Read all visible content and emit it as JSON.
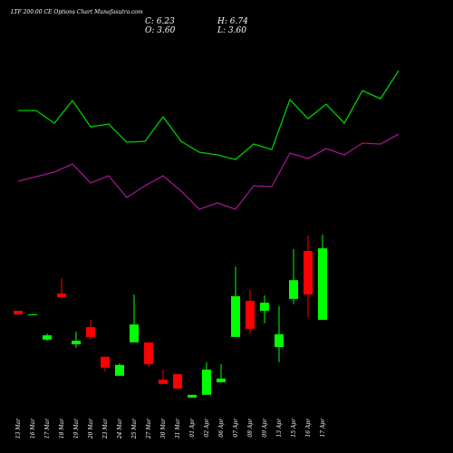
{
  "chart_data": {
    "type": "candlestick",
    "title": "LTF 200.00 CE Options Chart Munafasutra.com",
    "summary": {
      "close_label": "C:",
      "close": "6.23",
      "high_label": "H:",
      "high": "6.74",
      "open_label": "O:",
      "open": "3.60",
      "low_label": "L:",
      "low": "3.60"
    },
    "categories": [
      "13 Mar",
      "16 Mar",
      "17 Mar",
      "18 Mar",
      "19 Mar",
      "20 Mar",
      "23 Mar",
      "24 Mar",
      "25 Mar",
      "27 Mar",
      "30 Mar",
      "31 Mar",
      "01 Apr",
      "02 Apr",
      "06 Apr",
      "07 Apr",
      "08 Apr",
      "09 Apr",
      "13 Apr",
      "15 Apr",
      "16 Apr",
      "17 Apr"
    ],
    "open": [
      3.93,
      3.8,
      2.87,
      4.57,
      2.7,
      3.33,
      2.24,
      1.54,
      2.77,
      2.77,
      1.4,
      1.6,
      0.74,
      0.84,
      1.3,
      2.97,
      4.3,
      3.93,
      2.6,
      4.37,
      6.13,
      3.6
    ],
    "high": [
      3.93,
      3.8,
      3.1,
      5.13,
      3.17,
      3.6,
      2.24,
      2.0,
      4.53,
      2.77,
      1.77,
      1.6,
      0.84,
      2.04,
      1.97,
      5.56,
      4.7,
      4.5,
      4.1,
      6.2,
      6.7,
      6.74
    ],
    "low": [
      3.8,
      3.8,
      2.83,
      4.43,
      2.57,
      2.87,
      1.7,
      1.54,
      2.77,
      1.87,
      1.24,
      1.07,
      0.74,
      0.84,
      1.3,
      2.97,
      3.1,
      3.47,
      2.04,
      4.17,
      3.7,
      3.6
    ],
    "close": [
      3.8,
      3.8,
      3.03,
      4.43,
      2.83,
      2.97,
      1.84,
      1.94,
      3.43,
      1.97,
      1.24,
      1.07,
      0.84,
      1.77,
      1.44,
      4.47,
      3.27,
      4.23,
      3.07,
      5.06,
      4.53,
      6.23
    ],
    "up_color": "#00ff00",
    "down_color": "#ff0000",
    "ylim": [
      0,
      8
    ],
    "series": [
      {
        "color": "#00cc00",
        "axis": "y2",
        "values": [
          138,
          138,
          124,
          149,
          120,
          123,
          103,
          104,
          131,
          104,
          92,
          89,
          84,
          101,
          95,
          150,
          129,
          145,
          124,
          160,
          151,
          182
        ]
      },
      {
        "color": "#a0168c",
        "axis": "y2",
        "values": [
          60,
          65,
          70,
          79,
          58,
          66,
          42,
          55,
          66,
          49,
          29,
          36,
          29,
          55,
          54,
          91,
          85,
          96,
          89,
          102,
          101,
          112
        ]
      }
    ],
    "y2lim": [
      0,
      200
    ]
  }
}
